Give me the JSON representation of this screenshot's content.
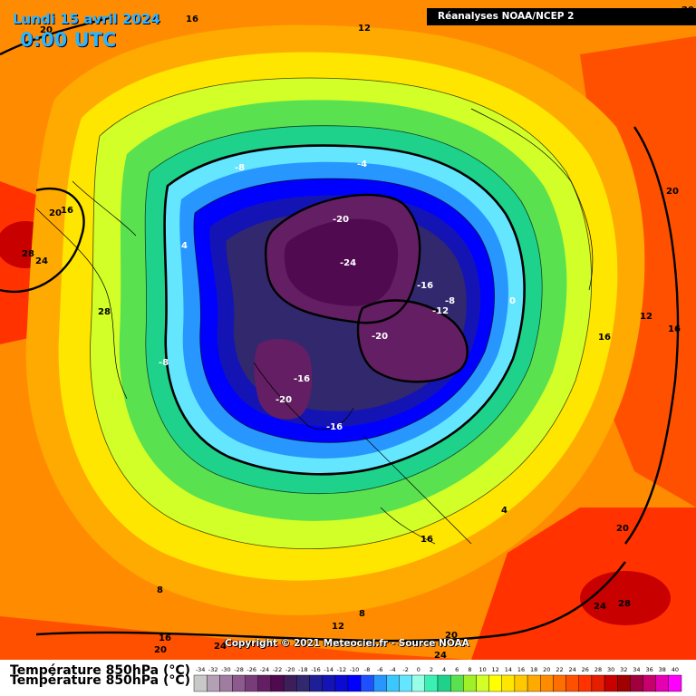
{
  "header": {
    "date": "Lundi 15 avril 2024",
    "time": "0:00 UTC",
    "source": "Réanalyses NOAA/NCEP 2"
  },
  "footer": {
    "copyright": "Copyright © 2021 Meteociel.fr - Source NOAA",
    "legend_title": "Température 850hPa (°C)"
  },
  "legend": {
    "ticks": [
      "-34",
      "-32",
      "-30",
      "-28",
      "-26",
      "-24",
      "-22",
      "-20",
      "-18",
      "-16",
      "-14",
      "-12",
      "-10",
      "-8",
      "-6",
      "-4",
      "-2",
      "0",
      "2",
      "4",
      "6",
      "8",
      "10",
      "12",
      "14",
      "16",
      "18",
      "20",
      "22",
      "24",
      "26",
      "28",
      "30",
      "32",
      "34",
      "36",
      "38",
      "40"
    ],
    "colors": [
      "#c8c8c8",
      "#b4a0b4",
      "#a07ca0",
      "#8c5a8c",
      "#783c78",
      "#641e64",
      "#500a50",
      "#3c1e5a",
      "#32286e",
      "#1e1e96",
      "#1414b4",
      "#0a0ad2",
      "#0000ff",
      "#1e50ff",
      "#2896ff",
      "#3cc8ff",
      "#64e6ff",
      "#96ffe6",
      "#3cf0b4",
      "#1ed28c",
      "#5ae150",
      "#a0f028",
      "#d2ff28",
      "#ffff00",
      "#ffe600",
      "#ffc800",
      "#ffaa00",
      "#ff8c00",
      "#ff6e00",
      "#ff5000",
      "#ff3200",
      "#e61e00",
      "#c80000",
      "#a00000",
      "#a0003c",
      "#c8006e",
      "#e600b4",
      "#ff00ff"
    ]
  },
  "map_labels": [
    {
      "text": "16"
    },
    {
      "text": "12"
    },
    {
      "text": "20"
    },
    {
      "text": "20"
    },
    {
      "text": "20"
    },
    {
      "text": "16"
    },
    {
      "text": "28"
    },
    {
      "text": "24"
    },
    {
      "text": "4"
    },
    {
      "text": "-8"
    },
    {
      "text": "-4"
    },
    {
      "text": "-20"
    },
    {
      "text": "-24"
    },
    {
      "text": "-16"
    },
    {
      "text": "-8"
    },
    {
      "text": "-12"
    },
    {
      "text": "0"
    },
    {
      "text": "20"
    },
    {
      "text": "12"
    },
    {
      "text": "16"
    },
    {
      "text": "16"
    },
    {
      "text": "28"
    },
    {
      "text": "-8"
    },
    {
      "text": "-20"
    },
    {
      "text": "-16"
    },
    {
      "text": "-20"
    },
    {
      "text": "-16"
    },
    {
      "text": "4"
    },
    {
      "text": "16"
    },
    {
      "text": "8"
    },
    {
      "text": "20"
    },
    {
      "text": "24"
    },
    {
      "text": "28"
    },
    {
      "text": "8"
    },
    {
      "text": "12"
    },
    {
      "text": "20"
    },
    {
      "text": "16"
    },
    {
      "text": "20"
    },
    {
      "text": "24"
    },
    {
      "text": "24"
    }
  ]
}
